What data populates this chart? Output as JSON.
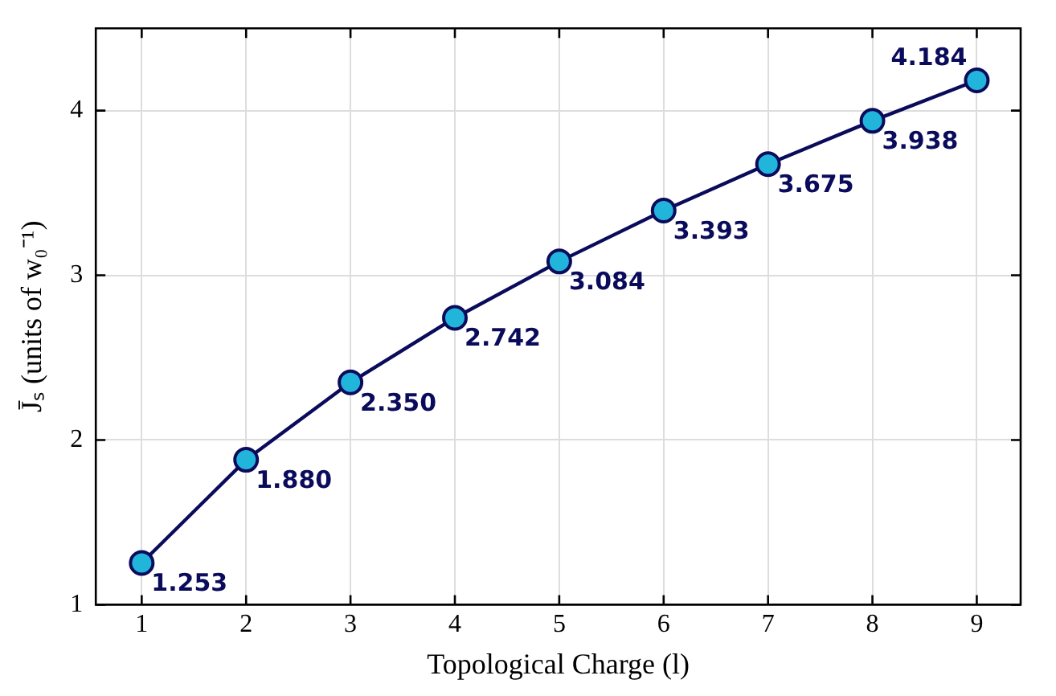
{
  "chart_data": {
    "type": "line",
    "xlabel": "Topological Charge (l)",
    "ylabel": "J̄ₛ (units of w₀⁻¹)",
    "x": [
      1,
      2,
      3,
      4,
      5,
      6,
      7,
      8,
      9
    ],
    "series": [
      {
        "color": "#0b0b5c",
        "values": [
          1.253,
          1.88,
          2.35,
          2.742,
          3.084,
          3.393,
          3.675,
          3.938,
          4.184
        ],
        "value_labels": [
          "1.253",
          "1.880",
          "2.350",
          "2.742",
          "3.084",
          "3.393",
          "3.675",
          "3.938",
          "4.184"
        ]
      }
    ],
    "xlim": [
      0.56,
      9.42
    ],
    "xticks": [
      1,
      2,
      3,
      4,
      5,
      6,
      7,
      8,
      9
    ],
    "ylim": [
      1,
      4.5
    ],
    "yticks": [
      1,
      2,
      3,
      4
    ],
    "grid": true,
    "legend": false,
    "marker": "circle",
    "line_style": "solid"
  }
}
